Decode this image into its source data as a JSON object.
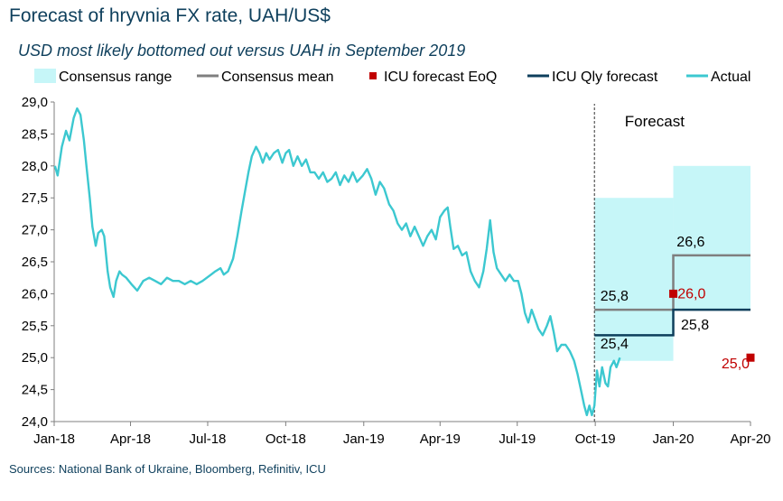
{
  "chart_data": {
    "type": "line",
    "title": "Forecast of hryvnia FX rate, UAH/US$",
    "subtitle": "USD most likely bottomed out versus UAH in September 2019",
    "source": "Sources: National Bank of Ukraine, Bloomberg, Refinitiv, ICU",
    "forecast_label": "Forecast",
    "legend_position": "top",
    "grid": false,
    "x_axis": {
      "type": "date",
      "range": [
        "2018-01-01",
        "2020-04-01"
      ],
      "tick_dates": [
        "2018-01-01",
        "2018-04-01",
        "2018-07-01",
        "2018-10-01",
        "2019-01-01",
        "2019-04-01",
        "2019-07-01",
        "2019-10-01",
        "2020-01-01",
        "2020-04-01"
      ],
      "tick_labels": [
        "Jan-18",
        "Apr-18",
        "Jul-18",
        "Oct-18",
        "Jan-19",
        "Apr-19",
        "Jul-19",
        "Oct-19",
        "Jan-20",
        "Apr-20"
      ]
    },
    "y_axis": {
      "range": [
        24.0,
        29.0
      ],
      "ticks": [
        24.0,
        24.5,
        25.0,
        25.5,
        26.0,
        26.5,
        27.0,
        27.5,
        28.0,
        28.5,
        29.0
      ],
      "tick_labels": [
        "24,0",
        "24,5",
        "25,0",
        "25,5",
        "26,0",
        "26,5",
        "27,0",
        "27,5",
        "28,0",
        "28,5",
        "29,0"
      ]
    },
    "forecast_start": "2019-09-30",
    "legend": [
      {
        "label": "Consensus range",
        "kind": "area",
        "color": "#c6f6f8"
      },
      {
        "label": "Consensus mean",
        "kind": "line",
        "color": "#7f7f7f"
      },
      {
        "label": "ICU forecast EoQ",
        "kind": "marker",
        "color": "#c00000"
      },
      {
        "label": "ICU Qly forecast",
        "kind": "line",
        "color": "#0e3f5c"
      },
      {
        "label": "Actual",
        "kind": "line",
        "color": "#3cc8d0"
      }
    ],
    "series": [
      {
        "name": "Actual",
        "color": "#3cc8d0",
        "points": [
          [
            "2018-01-02",
            28.0
          ],
          [
            "2018-01-05",
            27.85
          ],
          [
            "2018-01-10",
            28.3
          ],
          [
            "2018-01-15",
            28.55
          ],
          [
            "2018-01-19",
            28.4
          ],
          [
            "2018-01-24",
            28.75
          ],
          [
            "2018-01-28",
            28.9
          ],
          [
            "2018-02-01",
            28.8
          ],
          [
            "2018-02-05",
            28.4
          ],
          [
            "2018-02-08",
            28.0
          ],
          [
            "2018-02-12",
            27.5
          ],
          [
            "2018-02-15",
            27.05
          ],
          [
            "2018-02-19",
            26.75
          ],
          [
            "2018-02-22",
            26.95
          ],
          [
            "2018-02-26",
            27.0
          ],
          [
            "2018-03-01",
            26.9
          ],
          [
            "2018-03-05",
            26.35
          ],
          [
            "2018-03-08",
            26.1
          ],
          [
            "2018-03-12",
            25.95
          ],
          [
            "2018-03-15",
            26.2
          ],
          [
            "2018-03-19",
            26.35
          ],
          [
            "2018-03-22",
            26.3
          ],
          [
            "2018-03-27",
            26.25
          ],
          [
            "2018-04-02",
            26.15
          ],
          [
            "2018-04-09",
            26.05
          ],
          [
            "2018-04-16",
            26.2
          ],
          [
            "2018-04-23",
            26.25
          ],
          [
            "2018-04-30",
            26.2
          ],
          [
            "2018-05-07",
            26.15
          ],
          [
            "2018-05-14",
            26.25
          ],
          [
            "2018-05-21",
            26.2
          ],
          [
            "2018-05-28",
            26.2
          ],
          [
            "2018-06-04",
            26.15
          ],
          [
            "2018-06-11",
            26.2
          ],
          [
            "2018-06-18",
            26.15
          ],
          [
            "2018-06-25",
            26.2
          ],
          [
            "2018-06-30",
            26.25
          ],
          [
            "2018-07-05",
            26.3
          ],
          [
            "2018-07-10",
            26.35
          ],
          [
            "2018-07-16",
            26.4
          ],
          [
            "2018-07-20",
            26.3
          ],
          [
            "2018-07-25",
            26.35
          ],
          [
            "2018-07-31",
            26.55
          ],
          [
            "2018-08-05",
            26.9
          ],
          [
            "2018-08-10",
            27.3
          ],
          [
            "2018-08-14",
            27.6
          ],
          [
            "2018-08-18",
            27.9
          ],
          [
            "2018-08-22",
            28.15
          ],
          [
            "2018-08-27",
            28.3
          ],
          [
            "2018-08-31",
            28.2
          ],
          [
            "2018-09-04",
            28.05
          ],
          [
            "2018-09-08",
            28.2
          ],
          [
            "2018-09-12",
            28.1
          ],
          [
            "2018-09-17",
            28.2
          ],
          [
            "2018-09-22",
            28.25
          ],
          [
            "2018-09-27",
            28.05
          ],
          [
            "2018-10-01",
            28.2
          ],
          [
            "2018-10-05",
            28.25
          ],
          [
            "2018-10-10",
            28.0
          ],
          [
            "2018-10-15",
            28.15
          ],
          [
            "2018-10-20",
            28.0
          ],
          [
            "2018-10-25",
            28.1
          ],
          [
            "2018-10-30",
            27.9
          ],
          [
            "2018-11-04",
            27.9
          ],
          [
            "2018-11-09",
            27.8
          ],
          [
            "2018-11-14",
            27.9
          ],
          [
            "2018-11-19",
            27.75
          ],
          [
            "2018-11-24",
            27.8
          ],
          [
            "2018-11-29",
            27.9
          ],
          [
            "2018-12-04",
            27.7
          ],
          [
            "2018-12-09",
            27.85
          ],
          [
            "2018-12-14",
            27.75
          ],
          [
            "2018-12-19",
            27.9
          ],
          [
            "2018-12-24",
            27.75
          ],
          [
            "2018-12-31",
            27.85
          ],
          [
            "2019-01-05",
            27.95
          ],
          [
            "2019-01-10",
            27.8
          ],
          [
            "2019-01-15",
            27.55
          ],
          [
            "2019-01-20",
            27.75
          ],
          [
            "2019-01-25",
            27.65
          ],
          [
            "2019-01-31",
            27.4
          ],
          [
            "2019-02-05",
            27.3
          ],
          [
            "2019-02-10",
            27.1
          ],
          [
            "2019-02-15",
            27.0
          ],
          [
            "2019-02-20",
            27.1
          ],
          [
            "2019-02-25",
            26.9
          ],
          [
            "2019-03-02",
            27.05
          ],
          [
            "2019-03-07",
            26.9
          ],
          [
            "2019-03-12",
            26.75
          ],
          [
            "2019-03-17",
            26.9
          ],
          [
            "2019-03-22",
            27.0
          ],
          [
            "2019-03-27",
            26.85
          ],
          [
            "2019-04-01",
            27.2
          ],
          [
            "2019-04-06",
            27.3
          ],
          [
            "2019-04-10",
            27.35
          ],
          [
            "2019-04-13",
            27.05
          ],
          [
            "2019-04-17",
            26.7
          ],
          [
            "2019-04-22",
            26.75
          ],
          [
            "2019-04-27",
            26.6
          ],
          [
            "2019-05-02",
            26.65
          ],
          [
            "2019-05-07",
            26.35
          ],
          [
            "2019-05-12",
            26.2
          ],
          [
            "2019-05-17",
            26.1
          ],
          [
            "2019-05-22",
            26.35
          ],
          [
            "2019-05-26",
            26.7
          ],
          [
            "2019-05-30",
            27.15
          ],
          [
            "2019-06-03",
            26.65
          ],
          [
            "2019-06-07",
            26.4
          ],
          [
            "2019-06-12",
            26.3
          ],
          [
            "2019-06-17",
            26.2
          ],
          [
            "2019-06-22",
            26.3
          ],
          [
            "2019-06-27",
            26.2
          ],
          [
            "2019-07-02",
            26.2
          ],
          [
            "2019-07-06",
            26.0
          ],
          [
            "2019-07-10",
            25.7
          ],
          [
            "2019-07-14",
            25.55
          ],
          [
            "2019-07-18",
            25.75
          ],
          [
            "2019-07-22",
            25.6
          ],
          [
            "2019-07-26",
            25.45
          ],
          [
            "2019-07-31",
            25.35
          ],
          [
            "2019-08-05",
            25.5
          ],
          [
            "2019-08-09",
            25.65
          ],
          [
            "2019-08-13",
            25.4
          ],
          [
            "2019-08-17",
            25.1
          ],
          [
            "2019-08-22",
            25.2
          ],
          [
            "2019-08-27",
            25.2
          ],
          [
            "2019-09-01",
            25.1
          ],
          [
            "2019-09-06",
            24.95
          ],
          [
            "2019-09-10",
            24.75
          ],
          [
            "2019-09-14",
            24.5
          ],
          [
            "2019-09-18",
            24.25
          ],
          [
            "2019-09-21",
            24.1
          ],
          [
            "2019-09-24",
            24.25
          ],
          [
            "2019-09-27",
            24.1
          ],
          [
            "2019-09-30",
            24.25
          ],
          [
            "2019-10-03",
            24.8
          ],
          [
            "2019-10-06",
            24.55
          ],
          [
            "2019-10-09",
            24.85
          ],
          [
            "2019-10-13",
            24.6
          ],
          [
            "2019-10-16",
            24.55
          ],
          [
            "2019-10-19",
            24.85
          ],
          [
            "2019-10-23",
            24.95
          ],
          [
            "2019-10-26",
            24.85
          ],
          [
            "2019-10-30",
            25.0
          ]
        ]
      },
      {
        "name": "ICU Qly forecast",
        "color": "#0e3f5c",
        "steps": [
          {
            "from": "2019-09-30",
            "to": "2020-01-01",
            "value": 25.35
          },
          {
            "from": "2020-01-01",
            "to": "2020-04-01",
            "value": 25.75
          }
        ]
      },
      {
        "name": "Consensus mean",
        "color": "#7f7f7f",
        "steps": [
          {
            "from": "2019-09-30",
            "to": "2020-01-01",
            "value": 25.75
          },
          {
            "from": "2020-01-01",
            "to": "2020-04-01",
            "value": 26.6
          }
        ]
      },
      {
        "name": "Consensus range",
        "color": "#c6f6f8",
        "bands": [
          {
            "from": "2019-09-30",
            "to": "2020-01-01",
            "low": 24.95,
            "high": 27.5
          },
          {
            "from": "2020-01-01",
            "to": "2020-04-01",
            "low": 25.75,
            "high": 28.0
          }
        ]
      },
      {
        "name": "ICU forecast EoQ",
        "color": "#c00000",
        "points": [
          [
            "2020-01-01",
            26.0
          ],
          [
            "2020-04-01",
            25.0
          ]
        ]
      }
    ],
    "annotations": [
      {
        "text": "25,4",
        "color": "#000000"
      },
      {
        "text": "25,8",
        "color": "#000000"
      },
      {
        "text": "26,6",
        "color": "#000000"
      },
      {
        "text": "25,8",
        "color": "#000000"
      },
      {
        "text": "26,0",
        "color": "#c00000"
      },
      {
        "text": "25,0",
        "color": "#c00000"
      }
    ]
  }
}
